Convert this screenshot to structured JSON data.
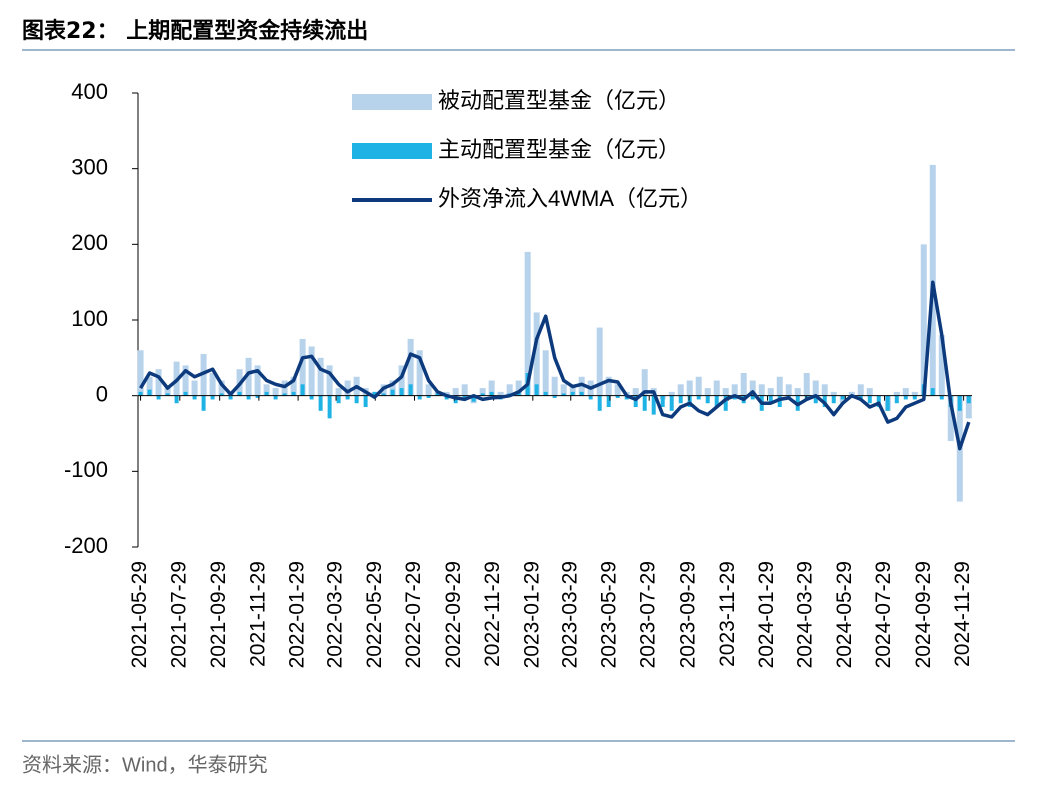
{
  "chart_data": {
    "type": "bar_line",
    "title": "图表22： 上期配置型资金持续流出",
    "source": "资料来源：Wind，华泰研究",
    "legend_position": "top",
    "x": [
      "2021-05-29",
      "2021-06-12",
      "2021-06-26",
      "2021-07-10",
      "2021-07-24",
      "2021-08-07",
      "2021-08-21",
      "2021-09-04",
      "2021-09-18",
      "2021-10-02",
      "2021-10-16",
      "2021-10-30",
      "2021-11-13",
      "2021-11-27",
      "2021-12-11",
      "2021-12-25",
      "2022-01-08",
      "2022-01-22",
      "2022-02-05",
      "2022-02-19",
      "2022-03-05",
      "2022-03-19",
      "2022-04-02",
      "2022-04-16",
      "2022-04-30",
      "2022-05-14",
      "2022-05-28",
      "2022-06-11",
      "2022-06-25",
      "2022-07-09",
      "2022-07-23",
      "2022-08-06",
      "2022-08-20",
      "2022-09-03",
      "2022-09-17",
      "2022-10-01",
      "2022-10-15",
      "2022-10-29",
      "2022-11-12",
      "2022-11-26",
      "2022-12-10",
      "2022-12-24",
      "2023-01-07",
      "2023-01-21",
      "2023-02-04",
      "2023-02-18",
      "2023-03-04",
      "2023-03-18",
      "2023-04-01",
      "2023-04-15",
      "2023-04-29",
      "2023-05-13",
      "2023-05-27",
      "2023-06-10",
      "2023-06-24",
      "2023-07-08",
      "2023-07-22",
      "2023-08-05",
      "2023-08-19",
      "2023-09-02",
      "2023-09-16",
      "2023-09-30",
      "2023-10-14",
      "2023-10-28",
      "2023-11-11",
      "2023-11-25",
      "2023-12-09",
      "2023-12-23",
      "2024-01-06",
      "2024-01-20",
      "2024-02-03",
      "2024-02-17",
      "2024-03-02",
      "2024-03-16",
      "2024-03-30",
      "2024-04-13",
      "2024-04-27",
      "2024-05-11",
      "2024-05-25",
      "2024-06-08",
      "2024-06-22",
      "2024-07-06",
      "2024-07-20",
      "2024-08-03",
      "2024-08-17",
      "2024-08-31",
      "2024-09-14",
      "2024-09-28",
      "2024-10-12",
      "2024-10-26",
      "2024-11-09",
      "2024-11-23",
      "2024-12-07"
    ],
    "xlim": [
      "2021-05-25",
      "2024-12-12"
    ],
    "xticks": [
      "2021-05-29",
      "2021-07-29",
      "2021-09-29",
      "2021-11-29",
      "2022-01-29",
      "2022-03-29",
      "2022-05-29",
      "2022-07-29",
      "2022-09-29",
      "2022-11-29",
      "2023-01-29",
      "2023-03-29",
      "2023-05-29",
      "2023-07-29",
      "2023-09-29",
      "2023-11-29",
      "2024-01-29",
      "2024-03-29",
      "2024-05-29",
      "2024-07-29",
      "2024-09-29",
      "2024-11-29"
    ],
    "ylim": [
      -200,
      400
    ],
    "yticks": [
      -200,
      -100,
      0,
      100,
      200,
      300,
      400
    ],
    "series": [
      {
        "name": "被动配置型基金（亿元）",
        "type": "bar",
        "color": "#b7d2eb",
        "values": [
          60,
          25,
          35,
          10,
          45,
          40,
          20,
          55,
          30,
          20,
          5,
          35,
          50,
          40,
          15,
          10,
          20,
          25,
          75,
          65,
          50,
          40,
          10,
          20,
          25,
          10,
          5,
          15,
          20,
          40,
          75,
          60,
          15,
          5,
          5,
          10,
          15,
          -10,
          10,
          20,
          5,
          15,
          20,
          190,
          110,
          60,
          25,
          15,
          15,
          25,
          20,
          90,
          25,
          15,
          5,
          10,
          35,
          10,
          -5,
          5,
          15,
          20,
          25,
          10,
          20,
          10,
          15,
          30,
          20,
          15,
          10,
          25,
          15,
          10,
          30,
          20,
          15,
          5,
          -10,
          5,
          15,
          10,
          0,
          -20,
          5,
          10,
          5,
          200,
          305,
          80,
          -60,
          -140,
          -30
        ]
      },
      {
        "name": "主动配置型基金（亿元）",
        "type": "bar",
        "color": "#1fb3e5",
        "values": [
          5,
          8,
          -5,
          3,
          -10,
          5,
          -5,
          -20,
          -5,
          3,
          -5,
          5,
          -5,
          -3,
          5,
          -5,
          3,
          5,
          15,
          -5,
          -20,
          -30,
          -10,
          -5,
          -10,
          -15,
          5,
          3,
          8,
          10,
          15,
          -5,
          -3,
          3,
          -5,
          -10,
          -5,
          -8,
          3,
          5,
          -5,
          3,
          5,
          30,
          15,
          5,
          -3,
          3,
          5,
          5,
          -5,
          -20,
          -15,
          -3,
          -5,
          -15,
          -20,
          -25,
          -15,
          -20,
          -10,
          -15,
          -5,
          -10,
          -15,
          -20,
          -5,
          -10,
          -5,
          -20,
          -10,
          -15,
          -5,
          -20,
          -5,
          -10,
          -15,
          -10,
          -5,
          -3,
          -5,
          -10,
          -15,
          -20,
          -10,
          -5,
          -5,
          15,
          10,
          -5,
          -15,
          -20,
          -10
        ]
      },
      {
        "name": "外资净流入4WMA（亿元）",
        "type": "line",
        "color": "#0c3a7c",
        "values": [
          10,
          30,
          25,
          10,
          20,
          33,
          25,
          30,
          35,
          15,
          2,
          15,
          30,
          33,
          20,
          15,
          12,
          20,
          50,
          52,
          35,
          30,
          15,
          5,
          12,
          5,
          -2,
          10,
          15,
          25,
          55,
          50,
          20,
          5,
          0,
          -3,
          -5,
          0,
          -5,
          -3,
          -2,
          0,
          5,
          15,
          75,
          105,
          50,
          20,
          12,
          15,
          10,
          15,
          20,
          18,
          0,
          -5,
          5,
          5,
          -25,
          -28,
          -15,
          -10,
          -20,
          -25,
          -15,
          -5,
          0,
          -5,
          5,
          -10,
          -10,
          -5,
          -3,
          -12,
          -5,
          0,
          -10,
          -25,
          -10,
          0,
          -5,
          -15,
          -10,
          -35,
          -30,
          -15,
          -10,
          -5,
          150,
          80,
          -10,
          -70,
          -35
        ]
      }
    ]
  }
}
